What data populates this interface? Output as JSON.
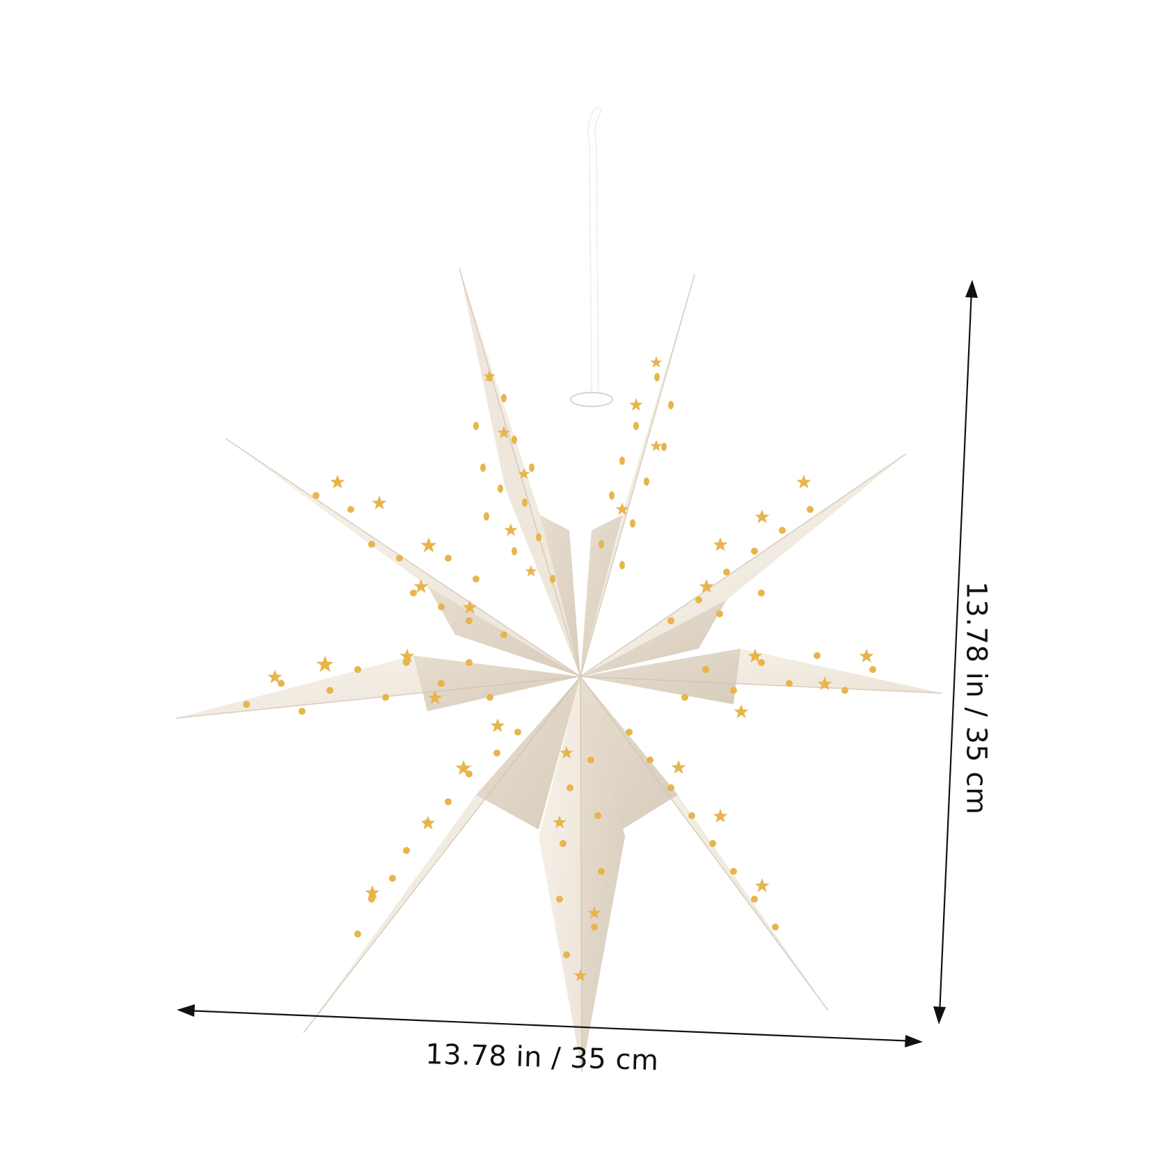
{
  "product": {
    "icon": "nine-point-paper-star-lantern",
    "paper_color": "#f3ece2",
    "cutout_color": "#e8b44c",
    "string_color": "#ffffff"
  },
  "dimensions": {
    "width_label": "13.78 in / 35 cm",
    "height_label": "13.78 in / 35 cm"
  }
}
